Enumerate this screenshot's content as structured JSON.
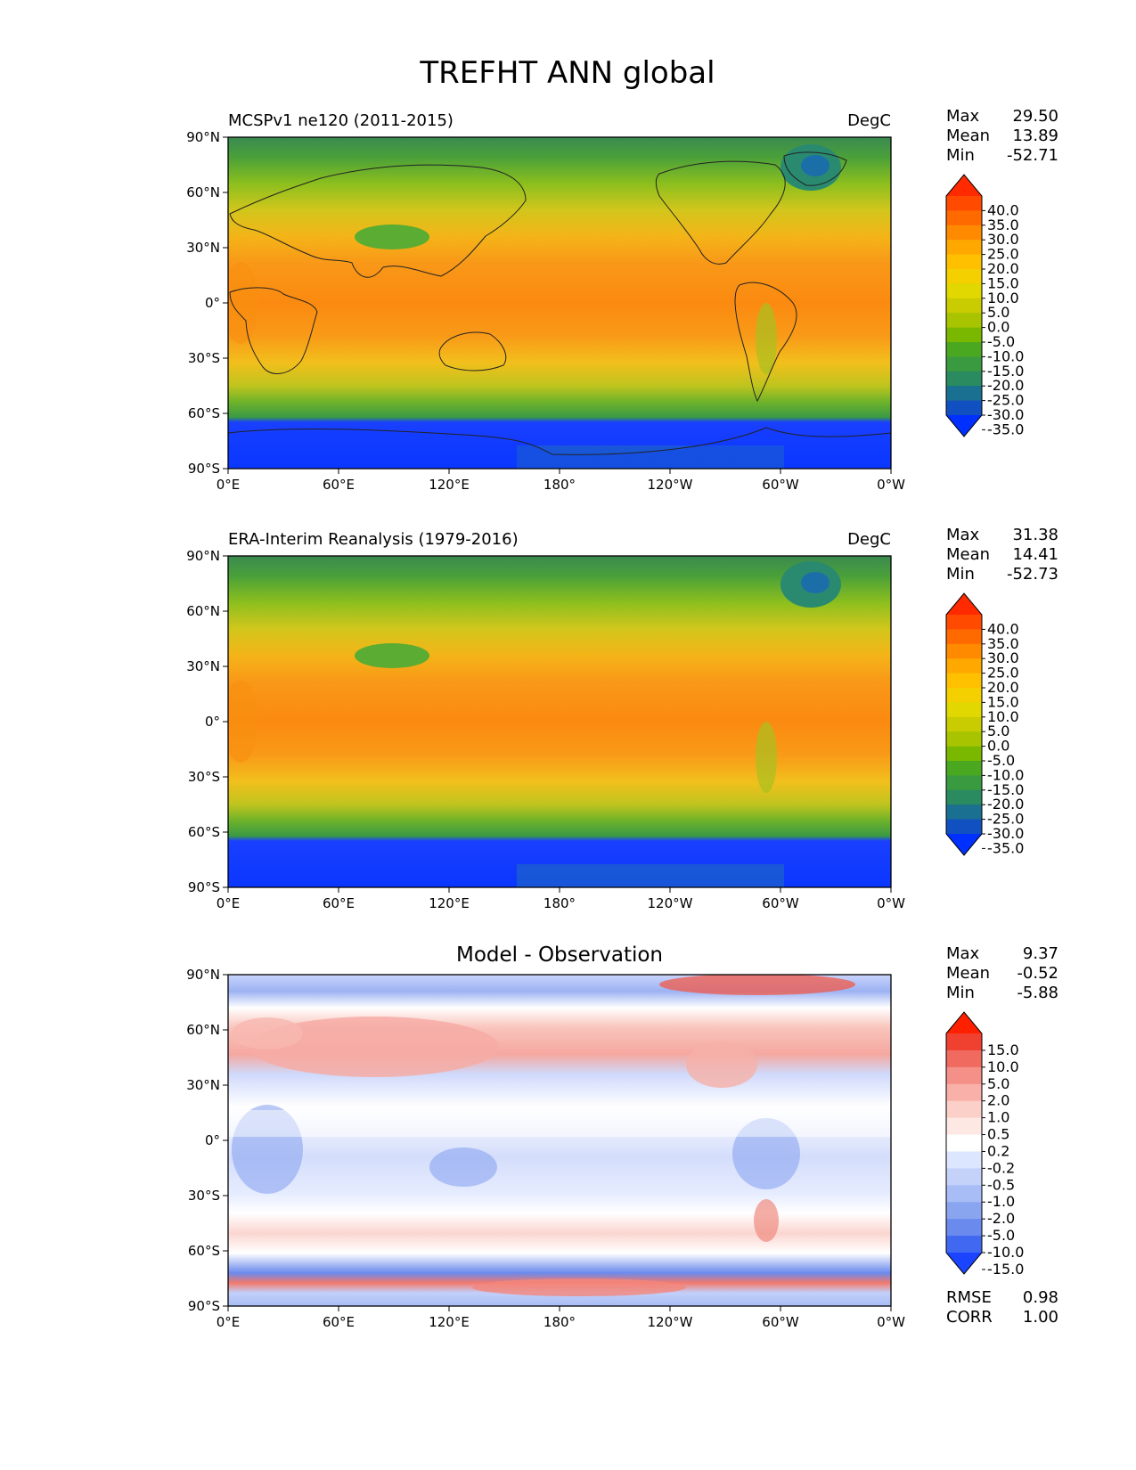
{
  "title": "TREFHT ANN global",
  "lon_ticks": [
    "0°E",
    "60°E",
    "120°E",
    "180°",
    "120°W",
    "60°W",
    "0°W"
  ],
  "lat_ticks": [
    "90°N",
    "60°N",
    "30°N",
    "0°",
    "30°S",
    "60°S",
    "90°S"
  ],
  "panels": [
    {
      "left_title": "MCSPv1 ne120 (2011-2015)",
      "center_title": "",
      "right_title": "DegC",
      "stats": [
        [
          "Max",
          "29.50"
        ],
        [
          "Mean",
          "13.89"
        ],
        [
          "Min",
          "-52.71"
        ]
      ],
      "colorbar": {
        "labels": [
          "40.0",
          "35.0",
          "30.0",
          "25.0",
          "20.0",
          "15.0",
          "10.0",
          "5.0",
          "0.0",
          "-5.0",
          "-10.0",
          "-15.0",
          "-20.0",
          "-25.0",
          "-30.0",
          "-35.0"
        ],
        "colors": [
          "#ff2a00",
          "#ff4a00",
          "#ff6a00",
          "#ff8a00",
          "#ffa800",
          "#ffc000",
          "#f5d000",
          "#e0d800",
          "#c8cc00",
          "#a8c400",
          "#7ab800",
          "#4aa820",
          "#3a9a40",
          "#2a8a60",
          "#1a7090",
          "#1050c0",
          "#0030ff"
        ]
      }
    },
    {
      "left_title": "ERA-Interim Reanalysis (1979-2016)",
      "center_title": "",
      "right_title": "DegC",
      "stats": [
        [
          "Max",
          "31.38"
        ],
        [
          "Mean",
          "14.41"
        ],
        [
          "Min",
          "-52.73"
        ]
      ],
      "colorbar": {
        "labels": [
          "40.0",
          "35.0",
          "30.0",
          "25.0",
          "20.0",
          "15.0",
          "10.0",
          "5.0",
          "0.0",
          "-5.0",
          "-10.0",
          "-15.0",
          "-20.0",
          "-25.0",
          "-30.0",
          "-35.0"
        ],
        "colors": [
          "#ff2a00",
          "#ff4a00",
          "#ff6a00",
          "#ff8a00",
          "#ffa800",
          "#ffc000",
          "#f5d000",
          "#e0d800",
          "#c8cc00",
          "#a8c400",
          "#7ab800",
          "#4aa820",
          "#3a9a40",
          "#2a8a60",
          "#1a7090",
          "#1050c0",
          "#0030ff"
        ]
      }
    },
    {
      "left_title": "",
      "center_title": "Model - Observation",
      "right_title": "",
      "stats": [
        [
          "Max",
          "9.37"
        ],
        [
          "Mean",
          "-0.52"
        ],
        [
          "Min",
          "-5.88"
        ]
      ],
      "colorbar": {
        "labels": [
          "15.0",
          "10.0",
          "5.0",
          "2.0",
          "1.0",
          "0.5",
          "0.2",
          "-0.2",
          "-0.5",
          "-1.0",
          "-2.0",
          "-5.0",
          "-10.0",
          "-15.0"
        ],
        "colors": [
          "#ff2000",
          "#f04030",
          "#f06a60",
          "#f59088",
          "#f8b0a8",
          "#fbd0c8",
          "#fde8e4",
          "#ffffff",
          "#dde6ff",
          "#c4d2fa",
          "#a8bdf5",
          "#8aa5f0",
          "#6a8aee",
          "#4068f0",
          "#1a44ff"
        ]
      },
      "bottom_stats": [
        [
          "RMSE",
          "0.98"
        ],
        [
          "CORR",
          "1.00"
        ]
      ]
    }
  ]
}
